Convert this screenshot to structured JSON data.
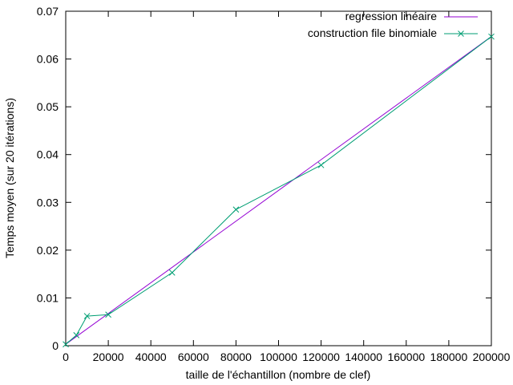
{
  "chart_data": {
    "type": "line",
    "title": "",
    "xlabel": "taille de l'échantillon (nombre de clef)",
    "ylabel": "Temps moyen (sur 20 itérations)",
    "xlim": [
      0,
      200000
    ],
    "ylim": [
      0,
      0.07
    ],
    "x_ticks": [
      0,
      20000,
      40000,
      60000,
      80000,
      100000,
      120000,
      140000,
      160000,
      180000,
      200000
    ],
    "x_tick_labels": [
      "0",
      "20000",
      "40000",
      "60000",
      "80000",
      "100000",
      "120000",
      "140000",
      "160000",
      "180000",
      "200000"
    ],
    "y_ticks": [
      0,
      0.01,
      0.02,
      0.03,
      0.04,
      0.05,
      0.06,
      0.07
    ],
    "y_tick_labels": [
      "0",
      "0.01",
      "0.02",
      "0.03",
      "0.04",
      "0.05",
      "0.06",
      "0.07"
    ],
    "grid": false,
    "legend_position": "top-right",
    "series": [
      {
        "name": "regression linéaire",
        "color": "#9400d3",
        "marker": "none",
        "x": [
          0,
          200000
        ],
        "y": [
          0.0003,
          0.0647
        ]
      },
      {
        "name": "construction file binomiale",
        "color": "#009e73",
        "marker": "x",
        "x": [
          0,
          5000,
          10000,
          20000,
          50000,
          80000,
          120000,
          200000
        ],
        "y": [
          0.0003,
          0.0022,
          0.0062,
          0.0065,
          0.0153,
          0.0285,
          0.0378,
          0.0647
        ]
      }
    ]
  }
}
